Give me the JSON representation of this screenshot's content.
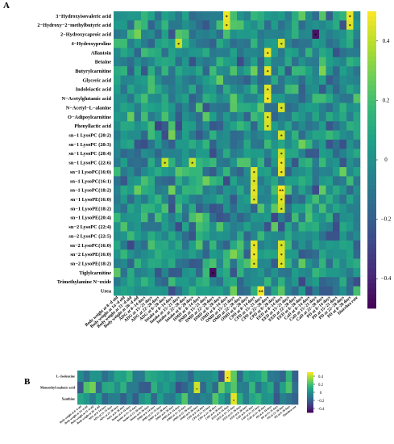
{
  "figure": {
    "panels": [
      "A",
      "B"
    ]
  },
  "palette": [
    "#440154",
    "#482878",
    "#3e4989",
    "#31688e",
    "#26828e",
    "#1f9e89",
    "#35b779",
    "#6ece58",
    "#b5de2b",
    "#fde725"
  ],
  "chart_data": [
    {
      "type": "heatmap",
      "panel": "A",
      "rows": [
        "3−Hydroxyisovaleric acid",
        "2−Hydroxy−2−methylbutyric acid",
        "2−Hydroxycaproic acid",
        "4−Hydroxyproline",
        "Allantoin",
        "Betaine",
        "Butyrylcarnitine",
        "Glyceric acid",
        "Indoleiactic acid",
        "N−Acetylglutamic acid",
        "N−Acetyl−L−alanine",
        "O−Adipoylcarnitine",
        "Phenyllactic acid",
        "sn−1 LysoPC (20:2)",
        "sn−1 LysoPC (20:3)",
        "sn−1 LysoPC (20:4)",
        "sn−1 LysoPC (22:6)",
        "sn−1 LysoPC(16:0)",
        "sn−1 LysoPC(16:1)",
        "sn−1 LysoPC(18:2)",
        "sn−1 LysoPE(16:0)",
        "sn−1 LysoPE(18:2)",
        "sn−1 LysoPE(20:4)",
        "sn−2 LysoPC (22:4)",
        "sn−2 LysoPC (22:5)",
        "sn−2 LysoPC(16:0)",
        "sn−2 LysoPE(16:0)",
        "sn−2 LysoPE(18:2)",
        "Tiglylcarnitine",
        "Trimethylamine N−oxide",
        "Urea"
      ],
      "columns": [
        "Body weight at 8−d old",
        "Body weight at 14−d old",
        "Body weight at 21−d old",
        "Body weight at 28−d old",
        "ADG at 8−14 days",
        "ADG at 15−21 days",
        "ADG at 22−28 days",
        "ADG at 8−28 days",
        "Intake at 8−14 days",
        "Intake at 15−21 days",
        "Intake at 22−28 days",
        "Intake at 8−28 days",
        "DMD at 8−14 days",
        "DMD at 15−21 days",
        "DMD at 22−28 days",
        "DMD at 8−28 days",
        "OMD at 8−14 days",
        "OMD at 15−21 days",
        "OMD at 22−28 days",
        "OMD at 8−28 days",
        "CPD at 8−14 days",
        "CPD at 15−21 days",
        "CPD at 22−28 days",
        "CPD at 8−28 days",
        "EED at 8−14 days",
        "EED at 15−21 days",
        "EED at 22−28 days",
        "EED at 8−28 days",
        "CaD at 8−14 days",
        "CaD at 15−21 days",
        "CaD at 22−28 days",
        "PD at 8−14 days",
        "PD at 15−21 days",
        "PD at 22−28 days",
        "PD at 8−28 days",
        "Diarrhea rate"
      ],
      "colorbar": {
        "ticks": [
          0.4,
          0.2,
          0,
          -0.2,
          -0.4
        ],
        "tick_labels": [
          "0.4",
          "0.2",
          "0",
          "−0.2",
          "−0.4"
        ],
        "range": [
          -0.5,
          0.5
        ]
      },
      "highlights": [
        {
          "row": 0,
          "col": 16,
          "value": 0.48,
          "label": "*"
        },
        {
          "row": 1,
          "col": 16,
          "value": 0.46,
          "label": "*"
        },
        {
          "row": 0,
          "col": 34,
          "value": 0.47,
          "label": "*"
        },
        {
          "row": 1,
          "col": 34,
          "value": 0.45,
          "label": "*"
        },
        {
          "row": 2,
          "col": 29,
          "value": -0.45,
          "label": "*"
        },
        {
          "row": 3,
          "col": 9,
          "value": 0.42,
          "label": "*"
        },
        {
          "row": 3,
          "col": 24,
          "value": 0.44,
          "label": "*"
        },
        {
          "row": 4,
          "col": 22,
          "value": 0.47,
          "label": "*"
        },
        {
          "row": 6,
          "col": 22,
          "value": 0.46,
          "label": "*"
        },
        {
          "row": 8,
          "col": 22,
          "value": 0.45,
          "label": "*"
        },
        {
          "row": 9,
          "col": 22,
          "value": 0.48,
          "label": "*"
        },
        {
          "row": 10,
          "col": 24,
          "value": 0.44,
          "label": "*"
        },
        {
          "row": 11,
          "col": 22,
          "value": 0.45,
          "label": "*"
        },
        {
          "row": 12,
          "col": 22,
          "value": 0.44,
          "label": "*"
        },
        {
          "row": 13,
          "col": 24,
          "value": 0.43,
          "label": "*"
        },
        {
          "row": 15,
          "col": 24,
          "value": 0.42,
          "label": "*"
        },
        {
          "row": 16,
          "col": 7,
          "value": 0.41,
          "label": "*"
        },
        {
          "row": 16,
          "col": 11,
          "value": 0.41,
          "label": "*"
        },
        {
          "row": 16,
          "col": 24,
          "value": 0.47,
          "label": "*"
        },
        {
          "row": 17,
          "col": 20,
          "value": 0.45,
          "label": "*"
        },
        {
          "row": 17,
          "col": 24,
          "value": 0.46,
          "label": "*"
        },
        {
          "row": 18,
          "col": 20,
          "value": 0.44,
          "label": "*"
        },
        {
          "row": 19,
          "col": 20,
          "value": 0.46,
          "label": "*"
        },
        {
          "row": 19,
          "col": 24,
          "value": 0.49,
          "label": "**"
        },
        {
          "row": 20,
          "col": 20,
          "value": 0.44,
          "label": "*"
        },
        {
          "row": 20,
          "col": 24,
          "value": 0.45,
          "label": "*"
        },
        {
          "row": 21,
          "col": 24,
          "value": 0.42,
          "label": "*"
        },
        {
          "row": 25,
          "col": 20,
          "value": 0.46,
          "label": "*"
        },
        {
          "row": 25,
          "col": 24,
          "value": 0.44,
          "label": "*"
        },
        {
          "row": 26,
          "col": 20,
          "value": 0.47,
          "label": "*"
        },
        {
          "row": 26,
          "col": 24,
          "value": 0.45,
          "label": "*"
        },
        {
          "row": 27,
          "col": 20,
          "value": 0.43,
          "label": "*"
        },
        {
          "row": 27,
          "col": 24,
          "value": 0.44,
          "label": "*"
        },
        {
          "row": 28,
          "col": 14,
          "value": -0.46,
          "label": "*"
        },
        {
          "row": 30,
          "col": 21,
          "value": 0.49,
          "label": "**"
        }
      ]
    },
    {
      "type": "heatmap",
      "panel": "B",
      "rows": [
        "L−Isoleucine",
        "Monoethyl malonic acid",
        "Xanthine"
      ],
      "columns": [
        "Body weight at 8−d old",
        "Body weight at 14−d old",
        "Body weight at 21−d old",
        "Body weight at 28−d old",
        "ADG at 8−14 days",
        "ADG at 15−21 days",
        "ADG at 22−28 days",
        "ADG at 8−28 days",
        "Intake at 8−14 days",
        "Intake at 15−21 days",
        "Intake at 22−28 days",
        "Intake at 8−28 days",
        "DMD at 8−14 days",
        "DMD at 15−21 days",
        "DMD at 22−28 days",
        "DMD at 8−28 days",
        "OMD at 8−14 days",
        "OMD at 15−21 days",
        "OMD at 22−28 days",
        "OMD at 8−28 days",
        "CPD at 8−14 days",
        "CPD at 15−21 days",
        "CPD at 22−28 days",
        "CPD at 8−28 days",
        "EED at 8−14 days",
        "EED at 15−21 days",
        "EED at 22−28 days",
        "EED at 8−28 days",
        "CaD at 8−14 days",
        "CaD at 15−21 days",
        "CaD at 22−28 days",
        "PD at 8−14 days",
        "PD at 15−21 days",
        "PD at 22−28 days",
        "PD at 8−28 days",
        "Diarrhea rate"
      ],
      "colorbar": {
        "ticks": [
          0.4,
          0.2,
          0,
          -0.2,
          -0.4
        ],
        "tick_labels": [
          "0.4",
          "0.2",
          "0",
          "−0.2",
          "−0.4"
        ],
        "range": [
          -0.5,
          0.5
        ]
      },
      "highlights": [
        {
          "row": 0,
          "col": 24,
          "value": 0.48,
          "label": "*"
        },
        {
          "row": 1,
          "col": 19,
          "value": 0.43,
          "label": "*"
        },
        {
          "row": 2,
          "col": 25,
          "value": 0.46,
          "label": "*"
        }
      ]
    }
  ]
}
